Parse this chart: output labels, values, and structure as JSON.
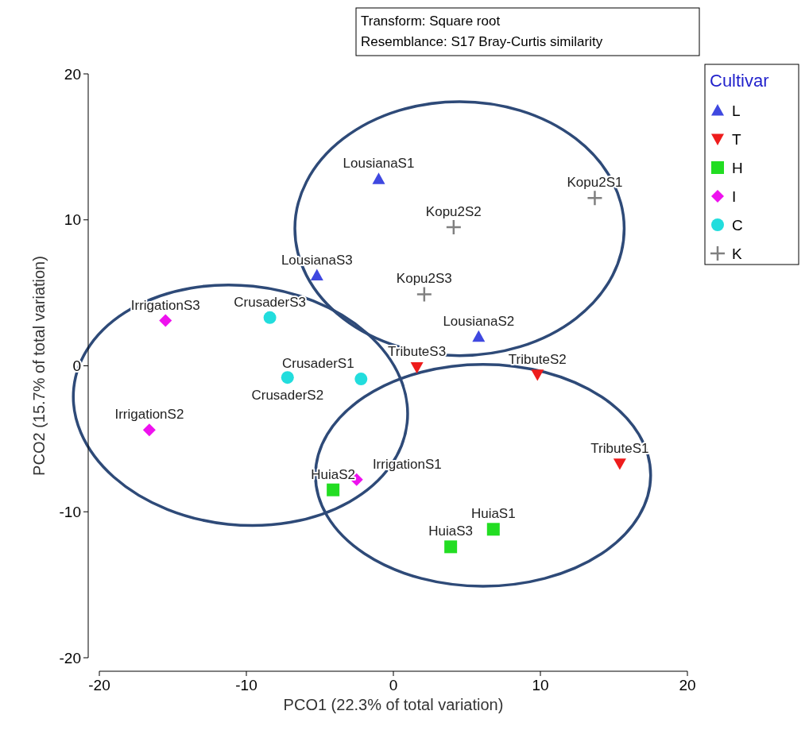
{
  "chart_data": {
    "type": "scatter",
    "xlabel": "PCO1 (22.3% of total variation)",
    "ylabel": "PCO2 (15.7% of total variation)",
    "legend_title": "Cultivar",
    "legend": "top right",
    "grid": false,
    "xlim": [
      -20,
      20
    ],
    "xticks": [
      -20,
      -10,
      0,
      10,
      20
    ],
    "ylim": [
      -20,
      20
    ],
    "yticks": [
      -20,
      -10,
      0,
      10,
      20
    ],
    "series": [
      {
        "name": "L",
        "color": "#3f48e0",
        "marker": "triangle",
        "x": [
          -1.0,
          -5.2,
          5.8
        ],
        "values": [
          12.8,
          6.2,
          2.0
        ]
      },
      {
        "name": "T",
        "color": "#ee1c1c",
        "marker": "triangle-down",
        "x": [
          15.4,
          9.8,
          1.6
        ],
        "values": [
          -6.7,
          -0.6,
          -0.1
        ]
      },
      {
        "name": "H",
        "color": "#22dd22",
        "marker": "square",
        "x": [
          6.8,
          -4.1,
          3.9
        ],
        "values": [
          -11.2,
          -8.5,
          -12.4
        ]
      },
      {
        "name": "I",
        "color": "#ee11ee",
        "marker": "diamond",
        "x": [
          -2.5,
          -16.6,
          -15.5
        ],
        "values": [
          -7.8,
          -4.4,
          3.1
        ]
      },
      {
        "name": "C",
        "color": "#22dddd",
        "marker": "circle",
        "x": [
          -2.2,
          -7.2,
          -8.4
        ],
        "values": [
          -0.9,
          -0.8,
          3.3
        ]
      },
      {
        "name": "K",
        "color": "#808080",
        "marker": "cross",
        "x": [
          13.7,
          4.1,
          2.1
        ],
        "values": [
          11.5,
          9.5,
          4.9
        ]
      }
    ],
    "annotations": [
      "Transform: Square root",
      "Resemblance: S17 Bray-Curtis similarity",
      {
        "text": "LousianaS1",
        "x": -1.0,
        "y": 12.8
      },
      {
        "text": "LousianaS3",
        "x": -5.2,
        "y": 6.2
      },
      {
        "text": "LousianaS2",
        "x": 5.8,
        "y": 2.0
      },
      {
        "text": "TributeS1",
        "x": 15.4,
        "y": -6.7
      },
      {
        "text": "TributeS2",
        "x": 9.8,
        "y": -0.6
      },
      {
        "text": "TributeS3",
        "x": 1.6,
        "y": -0.1
      },
      {
        "text": "HuiaS1",
        "x": 6.8,
        "y": -11.2
      },
      {
        "text": "HuiaS2",
        "x": -4.1,
        "y": -8.5
      },
      {
        "text": "HuiaS3",
        "x": 3.9,
        "y": -12.4
      },
      {
        "text": "IrrigationS1",
        "x": -2.5,
        "y": -7.8
      },
      {
        "text": "IrrigationS2",
        "x": -16.6,
        "y": -4.4
      },
      {
        "text": "IrrigationS3",
        "x": -15.5,
        "y": 3.1
      },
      {
        "text": "CrusaderS1",
        "x": -2.2,
        "y": -0.9
      },
      {
        "text": "CrusaderS2",
        "x": -7.2,
        "y": -0.8
      },
      {
        "text": "CrusaderS3",
        "x": -8.4,
        "y": 3.3
      },
      {
        "text": "Kopu2S1",
        "x": 13.7,
        "y": 11.5
      },
      {
        "text": "Kopu2S2",
        "x": 4.1,
        "y": 9.5
      },
      {
        "text": "Kopu2S3",
        "x": 2.1,
        "y": 4.9
      }
    ]
  }
}
